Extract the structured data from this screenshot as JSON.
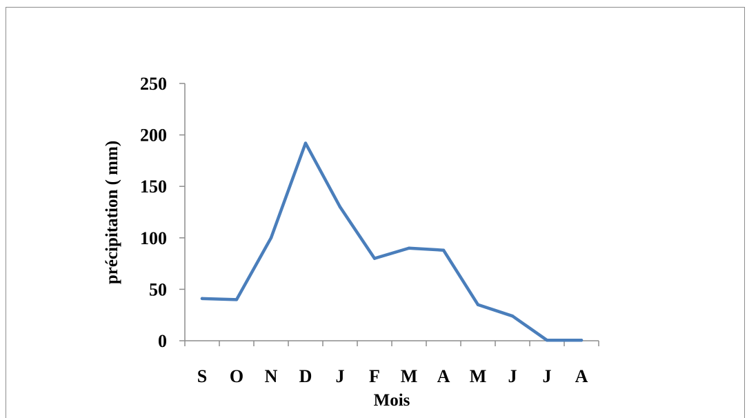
{
  "chart_data": {
    "type": "line",
    "categories": [
      "S",
      "O",
      "N",
      "D",
      "J",
      "F",
      "M",
      "A",
      "M",
      "J",
      "J",
      "A"
    ],
    "series": [
      {
        "values": [
          41,
          40,
          100,
          192,
          130,
          80,
          90,
          88,
          35,
          24,
          0.5,
          0.5
        ]
      }
    ],
    "xlabel": "Mois",
    "ylabel": "précipitation ( mm)",
    "ylim": [
      0,
      250
    ],
    "yticks": [
      "0",
      "50",
      "100",
      "150",
      "200",
      "250"
    ],
    "grid": false,
    "line_color": "#4a7ebb"
  }
}
